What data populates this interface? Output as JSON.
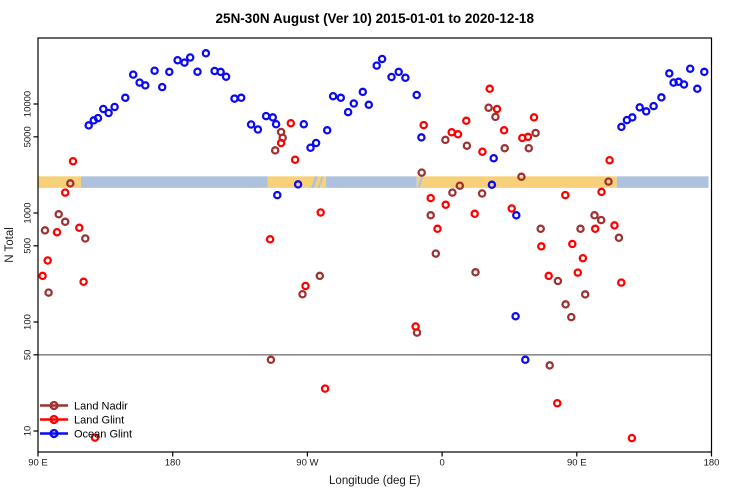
{
  "title": "25N-30N August (Ver 10)   2015-01-01 to 2020-12-18",
  "chart_data": {
    "type": "scatter",
    "title": "25N-30N August (Ver 10)   2015-01-01 to 2020-12-18",
    "xlabel": "Longitude (deg E)",
    "ylabel": "N Total",
    "x_axis": {
      "note": "longitude axis starting at 90E wrapping eastward; degrees unwrapped 90..540",
      "domain": [
        90,
        540
      ],
      "ticks": [
        {
          "deg": 90,
          "label": "90 E"
        },
        {
          "deg": 180,
          "label": "180"
        },
        {
          "deg": 270,
          "label": "90 W"
        },
        {
          "deg": 360,
          "label": "0"
        },
        {
          "deg": 450,
          "label": "90 E"
        },
        {
          "deg": 540,
          "label": "180"
        }
      ]
    },
    "y_axis": {
      "scale": "log10",
      "domain": [
        6.5,
        43000
      ],
      "ticks": [
        10,
        50,
        100,
        500,
        1000,
        5000,
        10000
      ]
    },
    "reference_line": {
      "value": 50,
      "color": "#8C8C8C"
    },
    "band": {
      "value_range": [
        1700,
        2170
      ],
      "segments": [
        {
          "from": 90,
          "to": 118.7,
          "color": "#F8D07A"
        },
        {
          "from": 118.7,
          "to": 243.6,
          "color": "#AEC2DE"
        },
        {
          "from": 243.6,
          "to": 282.3,
          "color": "#F8D07A"
        },
        {
          "from": 282.3,
          "to": 343.1,
          "color": "#AEC2DE"
        },
        {
          "from": 343.1,
          "to": 476.7,
          "color": "#F8D07A"
        },
        {
          "from": 476.7,
          "to": 538.0,
          "color": "#AEC2DE"
        }
      ],
      "streaks": [
        {
          "deg": 275.0,
          "w": 2.0,
          "color": "#AEC2DE"
        },
        {
          "deg": 279.5,
          "w": 1.2,
          "color": "#AEC2DE"
        },
        {
          "deg": 346.0,
          "w": 1.5,
          "color": "#AEC2DE"
        }
      ]
    },
    "legend_position": "bottom-left",
    "series": [
      {
        "name": "Land Nadir",
        "color": "#9E3232",
        "points": [
          [
            111.6,
            1870
          ],
          [
            103.8,
            973
          ],
          [
            108.2,
            830
          ],
          [
            94.7,
            692
          ],
          [
            121.6,
            583
          ],
          [
            97.1,
            186
          ],
          [
            245.6,
            45
          ],
          [
            248.5,
            3750
          ],
          [
            252.4,
            5530
          ],
          [
            253.5,
            4910
          ],
          [
            278.3,
            265
          ],
          [
            266.7,
            180
          ],
          [
            343.2,
            80
          ],
          [
            346.4,
            2350
          ],
          [
            352.4,
            953
          ],
          [
            355.8,
            424
          ],
          [
            362.2,
            4680
          ],
          [
            366.9,
            1540
          ],
          [
            371.8,
            1780
          ],
          [
            376.6,
            4140
          ],
          [
            382.3,
            286
          ],
          [
            386.7,
            1510
          ],
          [
            391.1,
            9250
          ],
          [
            395.6,
            7620
          ],
          [
            401.8,
            3920
          ],
          [
            413.0,
            2150
          ],
          [
            417.9,
            3930
          ],
          [
            422.5,
            5420
          ],
          [
            425.9,
            716
          ],
          [
            431.9,
            40
          ],
          [
            437.4,
            238
          ],
          [
            442.5,
            145
          ],
          [
            446.3,
            111
          ],
          [
            452.5,
            716
          ],
          [
            455.6,
            179
          ],
          [
            461.8,
            953
          ],
          [
            466.3,
            861
          ],
          [
            471.2,
            1940
          ],
          [
            478.1,
            592
          ]
        ]
      },
      {
        "name": "Land Glint",
        "color": "#FF0000",
        "points": [
          [
            113.4,
            2990
          ],
          [
            108.2,
            1540
          ],
          [
            102.7,
            667
          ],
          [
            117.6,
            731
          ],
          [
            96.5,
            367
          ],
          [
            93.1,
            265
          ],
          [
            120.5,
            234
          ],
          [
            128.1,
            8.7
          ],
          [
            245.1,
            574
          ],
          [
            258.9,
            6670
          ],
          [
            252.4,
            4390
          ],
          [
            261.8,
            3080
          ],
          [
            278.9,
            1010
          ],
          [
            281.8,
            24.5
          ],
          [
            268.7,
            214
          ],
          [
            342.3,
            91
          ],
          [
            347.7,
            6400
          ],
          [
            352.4,
            1370
          ],
          [
            356.9,
            716
          ],
          [
            362.4,
            1190
          ],
          [
            366.4,
            5510
          ],
          [
            370.6,
            5270
          ],
          [
            376.2,
            7010
          ],
          [
            381.8,
            984
          ],
          [
            386.9,
            3650
          ],
          [
            391.8,
            13800
          ],
          [
            396.7,
            8990
          ],
          [
            401.4,
            5740
          ],
          [
            406.5,
            1100
          ],
          [
            413.6,
            4880
          ],
          [
            417.4,
            4990
          ],
          [
            421.4,
            7530
          ],
          [
            426.3,
            494
          ],
          [
            431.2,
            265
          ],
          [
            437.0,
            18
          ],
          [
            442.3,
            1460
          ],
          [
            447.0,
            520
          ],
          [
            450.7,
            284
          ],
          [
            454.1,
            385
          ],
          [
            462.3,
            716
          ],
          [
            466.5,
            1560
          ],
          [
            471.9,
            3050
          ],
          [
            475.2,
            770
          ],
          [
            479.7,
            230
          ],
          [
            486.8,
            8.6
          ]
        ]
      },
      {
        "name": "Ocean Glint",
        "color": "#0B0BF0",
        "points": [
          [
            123.9,
            6360
          ],
          [
            127.2,
            7070
          ],
          [
            130.1,
            7420
          ],
          [
            133.6,
            8990
          ],
          [
            137.2,
            8260
          ],
          [
            141.2,
            9380
          ],
          [
            148.3,
            11400
          ],
          [
            153.6,
            18600
          ],
          [
            157.9,
            15700
          ],
          [
            161.7,
            14800
          ],
          [
            167.9,
            20200
          ],
          [
            173.0,
            14300
          ],
          [
            177.7,
            19700
          ],
          [
            183.3,
            25200
          ],
          [
            187.9,
            24000
          ],
          [
            191.7,
            26700
          ],
          [
            196.6,
            19800
          ],
          [
            202.2,
            29200
          ],
          [
            208.0,
            20100
          ],
          [
            212.0,
            19700
          ],
          [
            215.7,
            17800
          ],
          [
            221.3,
            11200
          ],
          [
            225.8,
            11400
          ],
          [
            232.4,
            6490
          ],
          [
            236.9,
            5830
          ],
          [
            242.4,
            7750
          ],
          [
            246.9,
            7530
          ],
          [
            249.1,
            6530
          ],
          [
            267.6,
            6530
          ],
          [
            283.2,
            5740
          ],
          [
            275.8,
            4390
          ],
          [
            272.1,
            3970
          ],
          [
            263.8,
            1830
          ],
          [
            249.9,
            1460
          ],
          [
            287.2,
            11800
          ],
          [
            292.3,
            11400
          ],
          [
            297.2,
            8430
          ],
          [
            301.0,
            10100
          ],
          [
            307.0,
            12900
          ],
          [
            311.0,
            9840
          ],
          [
            316.3,
            22500
          ],
          [
            319.9,
            25900
          ],
          [
            326.2,
            17700
          ],
          [
            331.0,
            19700
          ],
          [
            335.5,
            17400
          ],
          [
            343.0,
            12100
          ],
          [
            346.2,
            4940
          ],
          [
            393.3,
            1815
          ],
          [
            394.5,
            3180
          ],
          [
            409.6,
            953
          ],
          [
            409.1,
            113
          ],
          [
            415.6,
            45
          ],
          [
            479.8,
            6170
          ],
          [
            483.5,
            7110
          ],
          [
            487.1,
            7530
          ],
          [
            492.0,
            9310
          ],
          [
            496.4,
            8550
          ],
          [
            501.3,
            9570
          ],
          [
            506.5,
            11500
          ],
          [
            511.8,
            19100
          ],
          [
            514.7,
            15700
          ],
          [
            518.0,
            16000
          ],
          [
            521.6,
            15100
          ],
          [
            525.8,
            21100
          ],
          [
            530.5,
            13800
          ],
          [
            535.2,
            19700
          ]
        ]
      }
    ]
  },
  "colors": {
    "axis": "#000000",
    "tick_text": "#1a1a1a",
    "title_text": "#000000"
  }
}
